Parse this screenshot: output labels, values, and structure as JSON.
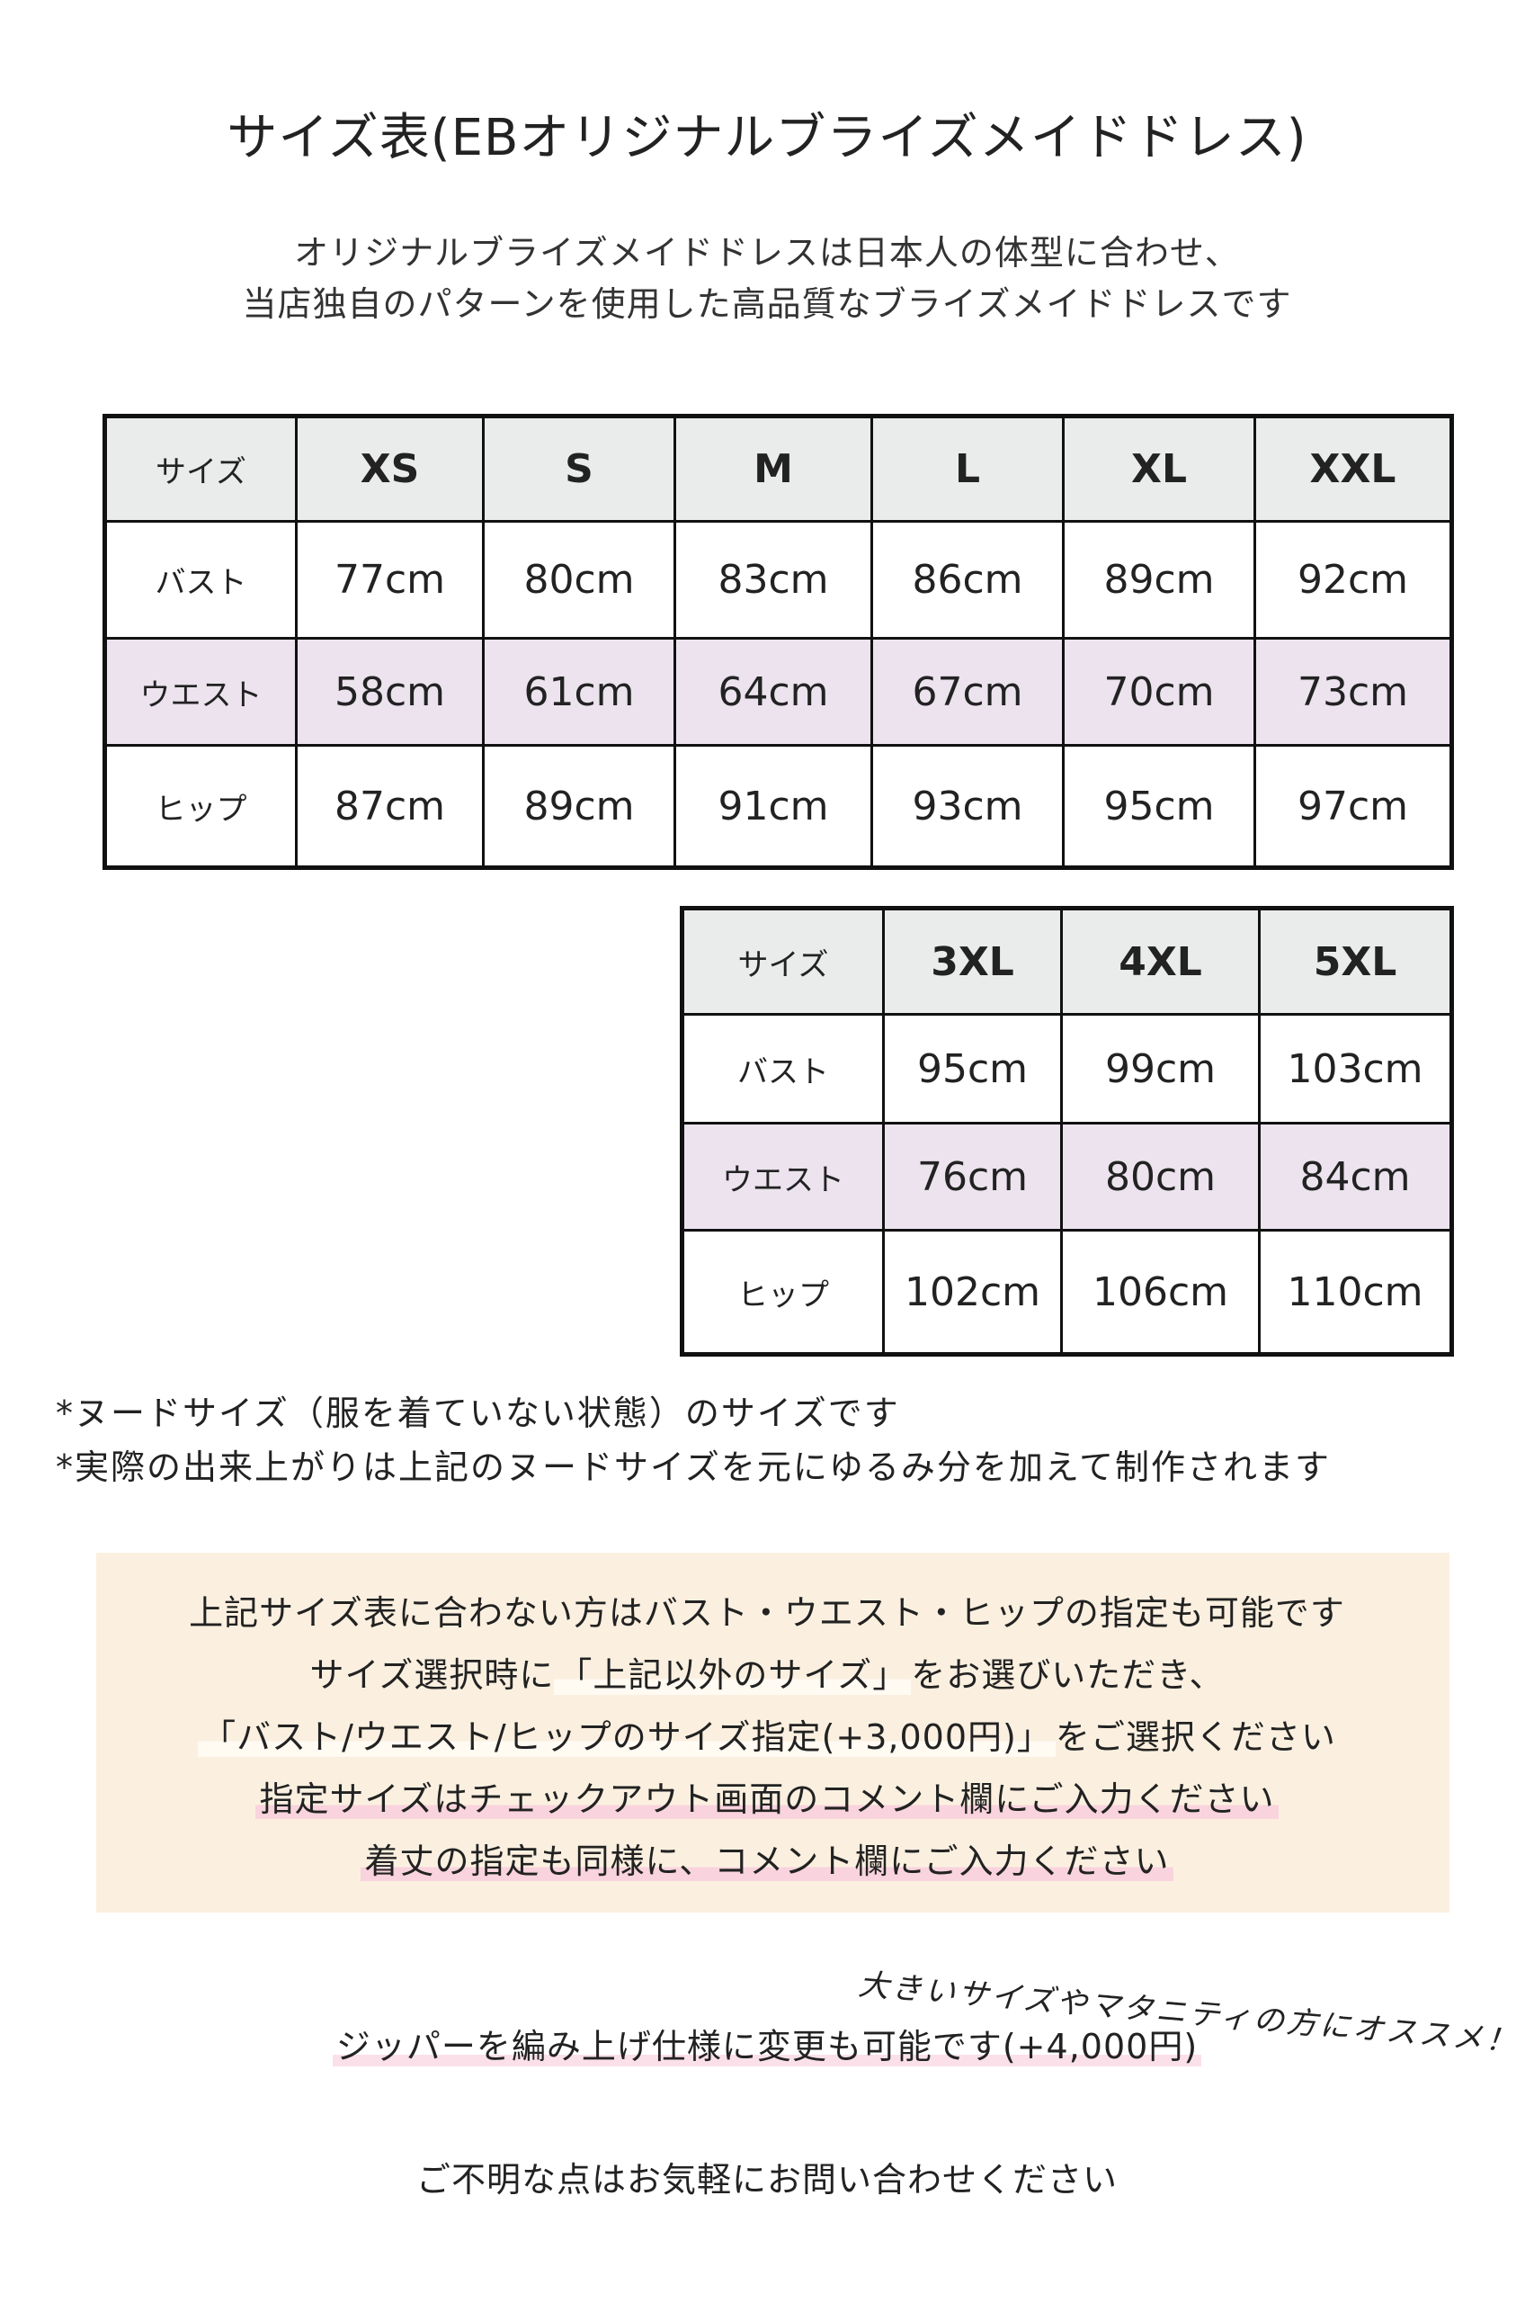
{
  "title": "サイズ表(EBオリジナルブライズメイドドレス)",
  "subtitle": [
    "オリジナルブライズメイドドレスは日本人の体型に合わせ、",
    "当店独自のパターンを使用した高品質なブライズメイドドレスです"
  ],
  "table1": {
    "header": [
      "サイズ",
      "XS",
      "S",
      "M",
      "L",
      "XL",
      "XXL"
    ],
    "rows": [
      [
        "バスト",
        "77cm",
        "80cm",
        "83cm",
        "86cm",
        "89cm",
        "92cm"
      ],
      [
        "ウエスト",
        "58cm",
        "61cm",
        "64cm",
        "67cm",
        "70cm",
        "73cm"
      ],
      [
        "ヒップ",
        "87cm",
        "89cm",
        "91cm",
        "93cm",
        "95cm",
        "97cm"
      ]
    ]
  },
  "table2": {
    "header": [
      "サイズ",
      "3XL",
      "4XL",
      "5XL"
    ],
    "rows": [
      [
        "バスト",
        "95cm",
        "99cm",
        "103cm"
      ],
      [
        "ウエスト",
        "76cm",
        "80cm",
        "84cm"
      ],
      [
        "ヒップ",
        "102cm",
        "106cm",
        "110cm"
      ]
    ]
  },
  "notes": [
    "*ヌードサイズ（服を着ていない状態）のサイズです",
    "*実際の出来上がりは上記のヌードサイズを元にゆるみ分を加えて制作されます"
  ],
  "box": {
    "line1": "上記サイズ表に合わない方はバスト・ウエスト・ヒップの指定も可能です",
    "line2a": "サイズ選択時に",
    "line2b": "「上記以外のサイズ」",
    "line2c": "をお選びいただき、",
    "line3a": "「バスト/ウエスト/ヒップのサイズ指定(+3,000円)」",
    "line3b": "をご選択ください",
    "line4": "指定サイズはチェックアウト画面のコメント欄にご入力ください",
    "line5": "着丈の指定も同様に、コメント欄にご入力ください"
  },
  "handwritten_note": "大きいサイズやマタニティの方にオススメ！",
  "zipper": "ジッパーを編み上げ仕様に変更も可能です(+4,000円)",
  "contact": "ご不明な点はお気軽にお問い合わせください",
  "colors": {
    "header_bg": "#e9eceb",
    "waist_bg": "#ece3ef",
    "box_bg": "#fbf0e0",
    "highlight_pink": "#f9d3dd"
  }
}
